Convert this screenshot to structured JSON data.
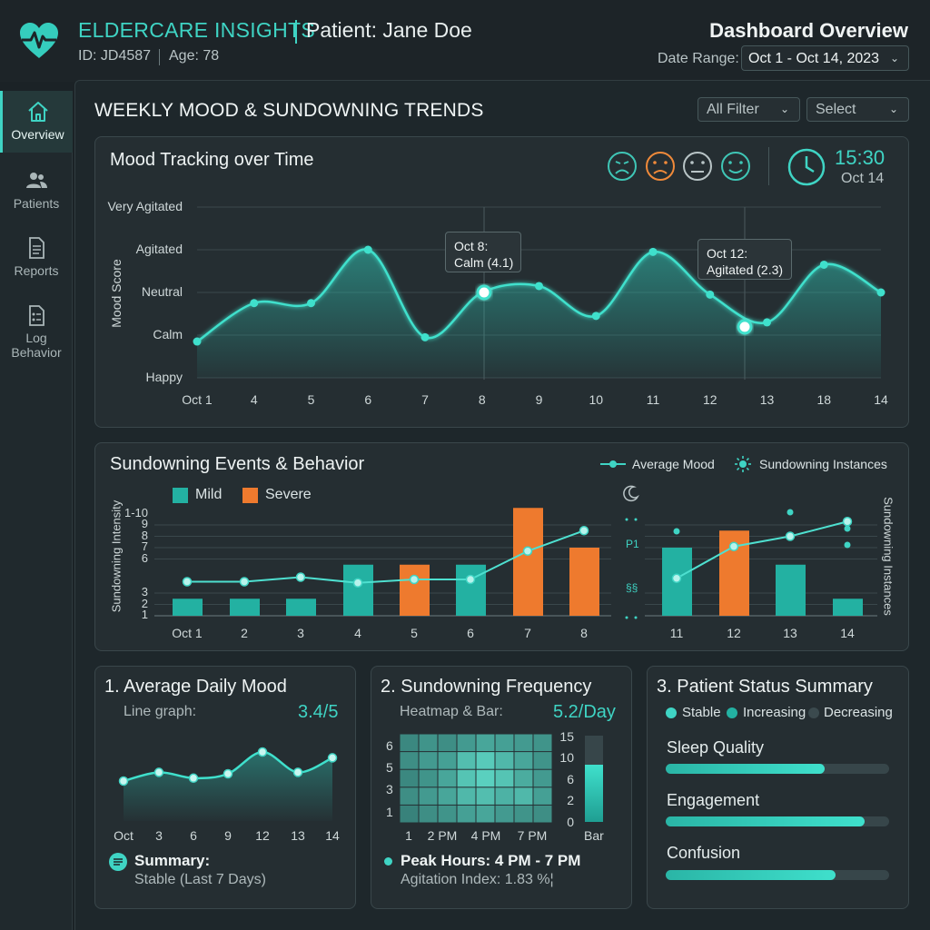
{
  "header": {
    "brand": "ELDERCARE INSIGHTS",
    "patient": "Patient: Jane Doe",
    "id": "ID: JD4587",
    "age": "Age: 78",
    "title": "Dashboard Overview",
    "date_label": "Date Range:",
    "date_value": "Oct 1 - Oct 14, 2023"
  },
  "sidebar": {
    "items": [
      {
        "label": "Overview",
        "icon": "home-icon",
        "active": true
      },
      {
        "label": "Patients",
        "icon": "users-icon",
        "active": false
      },
      {
        "label": "Reports",
        "icon": "document-icon",
        "active": false
      },
      {
        "label": "Log Behavior",
        "icon": "clipboard-icon",
        "active": false
      }
    ]
  },
  "section": {
    "title": "WEEKLY MOOD & SUNDOWNING TRENDS",
    "filter_1": "All Filter",
    "filter_2": "Select"
  },
  "mood_panel": {
    "title": "Mood Tracking over Time",
    "time": "15:30",
    "date": "Oct 14",
    "faces": [
      "very-agitated-face-icon",
      "agitated-face-icon",
      "neutral-face-icon",
      "happy-face-icon"
    ],
    "tooltip_1_line1": "Oct 8:",
    "tooltip_1_line2": "Calm (4.1)",
    "tooltip_2_line1": "Oct 12:",
    "tooltip_2_line2": "Agitated (2.3)"
  },
  "sundown_panel": {
    "title": "Sundowning Events & Behavior",
    "legend_mild": "Mild",
    "legend_severe": "Severe",
    "legend_avg": "Average Mood",
    "legend_instances": "Sundowning Instances",
    "y_label": "Sundowning Intensity",
    "y2_label": "Sundowning Instances",
    "left_y_ticks": [
      "1-10",
      "9",
      "8",
      "7",
      "6",
      "3",
      "2",
      "1"
    ],
    "mid_ticks": [
      "P1",
      "§§"
    ]
  },
  "card1": {
    "title": "1. Average Daily Mood",
    "subtitle": "Line graph:",
    "value": "3.4/5",
    "summary_title": "Summary:",
    "summary_text": "Stable (Last 7 Days)",
    "x": [
      "Oct",
      "3",
      "6",
      "9",
      "12",
      "13",
      "14"
    ]
  },
  "card2": {
    "title": "2. Sundowning Frequency",
    "subtitle": "Heatmap & Bar:",
    "value": "5.2/Day",
    "y_ticks": [
      "6",
      "5",
      "3",
      "1"
    ],
    "x_ticks": [
      "1",
      "2 PM",
      "4 PM",
      "7 PM"
    ],
    "bar_ticks": [
      "15",
      "10",
      "6",
      "2",
      "0"
    ],
    "bar_label": "Bar",
    "peak": "Peak Hours: 4 PM - 7 PM",
    "index": "Agitation Index: 1.83 %¦"
  },
  "card3": {
    "title": "3. Patient Status Summary",
    "legend": [
      "Stable",
      "Increasing",
      "Decreasing"
    ],
    "metrics": [
      {
        "label": "Sleep Quality",
        "level": 0.71
      },
      {
        "label": "Engagement",
        "level": 0.89
      },
      {
        "label": "Confusion",
        "level": 0.76
      }
    ]
  },
  "chart_data": [
    {
      "type": "line",
      "title": "Mood Tracking over Time",
      "ylabel": "Mood Score",
      "y_categories": [
        "Happy",
        "Calm",
        "Neutral",
        "Agitated",
        "Very Agitated"
      ],
      "ylim": [
        0,
        4
      ],
      "x": [
        "Oct 1",
        "4",
        "5",
        "6",
        "7",
        "8",
        "9",
        "10",
        "11",
        "12",
        "13",
        "18",
        "14"
      ],
      "values": [
        0.85,
        1.75,
        1.75,
        3.0,
        0.95,
        2.0,
        2.15,
        1.45,
        2.95,
        1.95,
        1.3,
        2.65,
        2.0
      ],
      "highlight": [
        {
          "x": "8",
          "value": 2.0
        },
        {
          "x": "12-13",
          "value": 1.3
        }
      ]
    },
    {
      "type": "bar",
      "title": "Sundowning Events & Behavior",
      "categories": [
        "Oct 1",
        "2",
        "3",
        "4",
        "5",
        "6",
        "7",
        "8",
        "11",
        "12",
        "13",
        "14"
      ],
      "series": [
        {
          "name": "Mild",
          "values": [
            2.5,
            2.5,
            2.5,
            5.5,
            null,
            5.5,
            null,
            null,
            7.0,
            null,
            5.5,
            2.5
          ]
        },
        {
          "name": "Severe",
          "values": [
            null,
            null,
            null,
            null,
            5.5,
            null,
            10.5,
            7.0,
            null,
            8.5,
            null,
            null
          ]
        },
        {
          "name": "Average Mood",
          "values": [
            4.0,
            4.0,
            4.4,
            3.9,
            4.2,
            4.2,
            6.7,
            8.5,
            4.3,
            7.1,
            8.0,
            9.3
          ]
        }
      ],
      "ylabel": "Sundowning Intensity",
      "ylim": [
        0,
        11
      ]
    },
    {
      "type": "line",
      "title": "1. Average Daily Mood",
      "x": [
        "Oct",
        "3",
        "6",
        "9",
        "12",
        "13",
        "14"
      ],
      "values": [
        3.0,
        3.3,
        3.1,
        3.25,
        4.0,
        3.3,
        3.8
      ]
    },
    {
      "type": "heatmap",
      "title": "2. Sundowning Frequency",
      "grid": [
        [
          0.35,
          0.45,
          0.4,
          0.5,
          0.6,
          0.55,
          0.5,
          0.45
        ],
        [
          0.4,
          0.5,
          0.55,
          0.8,
          0.9,
          0.75,
          0.6,
          0.45
        ],
        [
          0.35,
          0.45,
          0.6,
          0.85,
          0.95,
          0.85,
          0.65,
          0.5
        ],
        [
          0.4,
          0.5,
          0.6,
          0.75,
          0.8,
          0.7,
          0.75,
          0.55
        ],
        [
          0.3,
          0.4,
          0.45,
          0.55,
          0.6,
          0.5,
          0.45,
          0.4
        ]
      ],
      "bar_value": 10,
      "bar_max": 15
    }
  ]
}
